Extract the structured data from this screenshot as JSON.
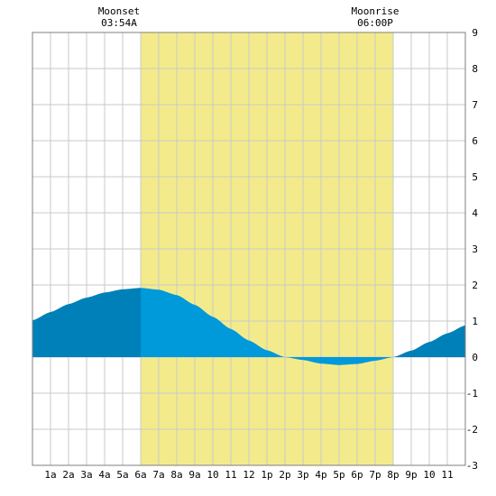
{
  "moonset": {
    "label": "Moonset",
    "time": "03:54A"
  },
  "moonrise": {
    "label": "Moonrise",
    "time": "06:00P"
  },
  "chart_data": {
    "type": "area",
    "x_range_hours": [
      0,
      24
    ],
    "ylim": [
      -3,
      9
    ],
    "y_ticks": [
      9,
      8,
      7,
      6,
      5,
      4,
      3,
      2,
      1,
      0,
      -1,
      -2,
      -3
    ],
    "x_ticks": [
      {
        "hour": 1,
        "label": "1a"
      },
      {
        "hour": 2,
        "label": "2a"
      },
      {
        "hour": 3,
        "label": "3a"
      },
      {
        "hour": 4,
        "label": "4a"
      },
      {
        "hour": 5,
        "label": "5a"
      },
      {
        "hour": 6,
        "label": "6a"
      },
      {
        "hour": 7,
        "label": "7a"
      },
      {
        "hour": 8,
        "label": "8a"
      },
      {
        "hour": 9,
        "label": "9a"
      },
      {
        "hour": 10,
        "label": "10"
      },
      {
        "hour": 11,
        "label": "11"
      },
      {
        "hour": 12,
        "label": "12"
      },
      {
        "hour": 13,
        "label": "1p"
      },
      {
        "hour": 14,
        "label": "2p"
      },
      {
        "hour": 15,
        "label": "3p"
      },
      {
        "hour": 16,
        "label": "4p"
      },
      {
        "hour": 17,
        "label": "5p"
      },
      {
        "hour": 18,
        "label": "6p"
      },
      {
        "hour": 19,
        "label": "7p"
      },
      {
        "hour": 20,
        "label": "8p"
      },
      {
        "hour": 21,
        "label": "9p"
      },
      {
        "hour": 22,
        "label": "10"
      },
      {
        "hour": 23,
        "label": "11"
      }
    ],
    "daylight_hours": [
      6,
      20
    ],
    "tide_points": [
      {
        "hour": 0,
        "value": 1.02
      },
      {
        "hour": 1,
        "value": 1.25
      },
      {
        "hour": 2,
        "value": 1.47
      },
      {
        "hour": 3,
        "value": 1.65
      },
      {
        "hour": 4,
        "value": 1.79
      },
      {
        "hour": 5,
        "value": 1.88
      },
      {
        "hour": 6,
        "value": 1.92
      },
      {
        "hour": 7,
        "value": 1.87
      },
      {
        "hour": 8,
        "value": 1.72
      },
      {
        "hour": 9,
        "value": 1.45
      },
      {
        "hour": 10,
        "value": 1.12
      },
      {
        "hour": 11,
        "value": 0.78
      },
      {
        "hour": 12,
        "value": 0.46
      },
      {
        "hour": 13,
        "value": 0.19
      },
      {
        "hour": 14,
        "value": 0.0
      },
      {
        "hour": 15,
        "value": -0.08
      },
      {
        "hour": 16,
        "value": -0.18
      },
      {
        "hour": 17,
        "value": -0.22
      },
      {
        "hour": 18,
        "value": -0.19
      },
      {
        "hour": 19,
        "value": -0.1
      },
      {
        "hour": 20,
        "value": 0.0
      },
      {
        "hour": 21,
        "value": 0.18
      },
      {
        "hour": 22,
        "value": 0.42
      },
      {
        "hour": 23,
        "value": 0.66
      },
      {
        "hour": 24,
        "value": 0.88
      }
    ],
    "colors": {
      "background": "#ffffff",
      "daylight": "#f3eb8b",
      "grid": "#c8c8c8",
      "tide_day": "#0099d9",
      "tide_night": "#0080b8",
      "axis": "#000000"
    }
  }
}
